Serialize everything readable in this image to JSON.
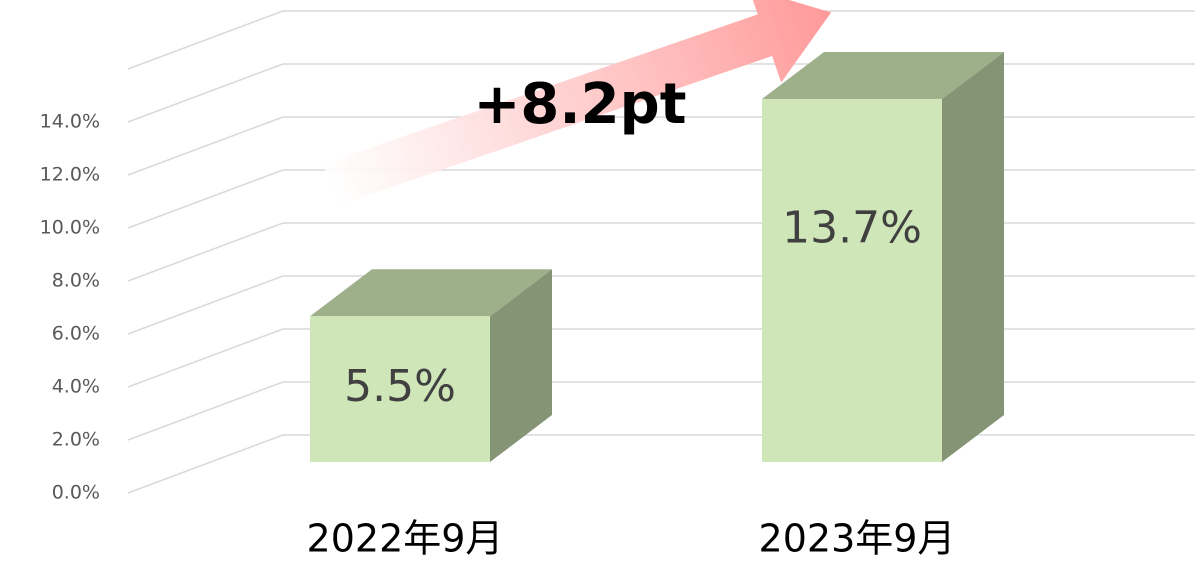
{
  "chart_data": {
    "type": "bar3d",
    "categories": [
      "2022年9月",
      "2023年9月"
    ],
    "values": [
      5.5,
      13.7
    ],
    "value_labels": [
      "5.5%",
      "13.7%"
    ],
    "annotation": "+8.2pt",
    "ylim": [
      0,
      16
    ],
    "yticks": [
      {
        "value": 0,
        "label": "0.0%"
      },
      {
        "value": 2,
        "label": "2.0%"
      },
      {
        "value": 4,
        "label": "4.0%"
      },
      {
        "value": 6,
        "label": "6.0%"
      },
      {
        "value": 8,
        "label": "8.0%"
      },
      {
        "value": 10,
        "label": "10.0%"
      },
      {
        "value": 12,
        "label": "12.0%"
      },
      {
        "value": 14,
        "label": "14.0%"
      }
    ],
    "grid": true,
    "colors": {
      "front": "#cfe6b8",
      "top": "#9db08a",
      "side": "#849474"
    }
  }
}
